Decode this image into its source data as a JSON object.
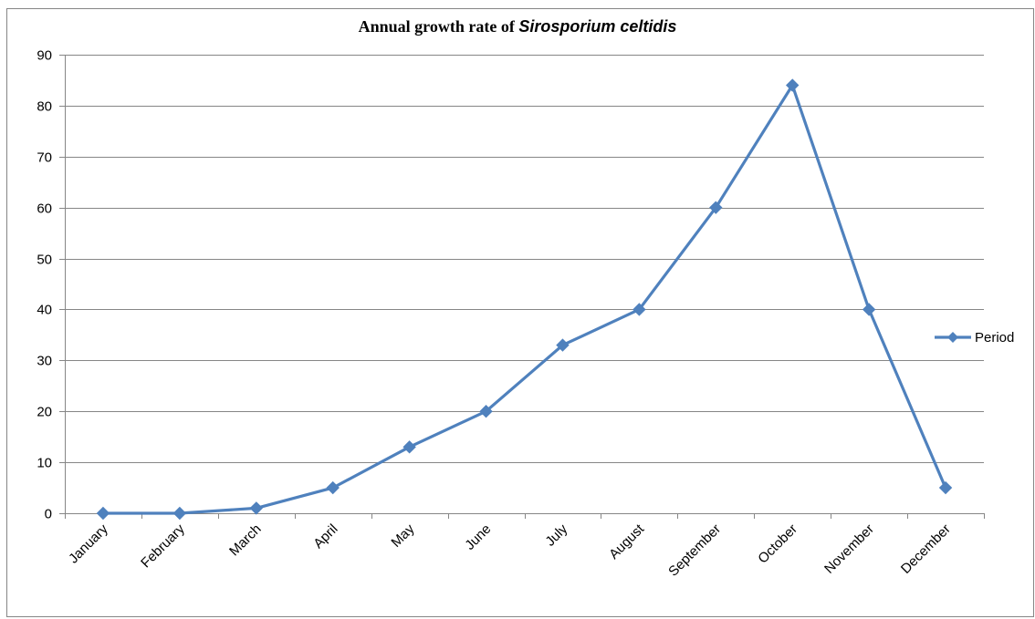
{
  "chart_data": {
    "type": "line",
    "title_prefix": "Annual  growth rate of ",
    "title_italic": "Sirosporium celtidis",
    "categories": [
      "January",
      "February",
      "March",
      "April",
      "May",
      "June",
      "July",
      "August",
      "September",
      "October",
      "November",
      "December"
    ],
    "series": [
      {
        "name": "Period",
        "values": [
          0,
          0,
          1,
          5,
          13,
          20,
          33,
          40,
          60,
          84,
          40,
          5
        ],
        "color": "#4f81bd"
      }
    ],
    "y_ticks": [
      "0",
      "10",
      "20",
      "30",
      "40",
      "50",
      "60",
      "70",
      "80",
      "90"
    ],
    "ylim": [
      0,
      90
    ],
    "grid": true,
    "legend_position": "right",
    "xlabel": "",
    "ylabel": ""
  }
}
